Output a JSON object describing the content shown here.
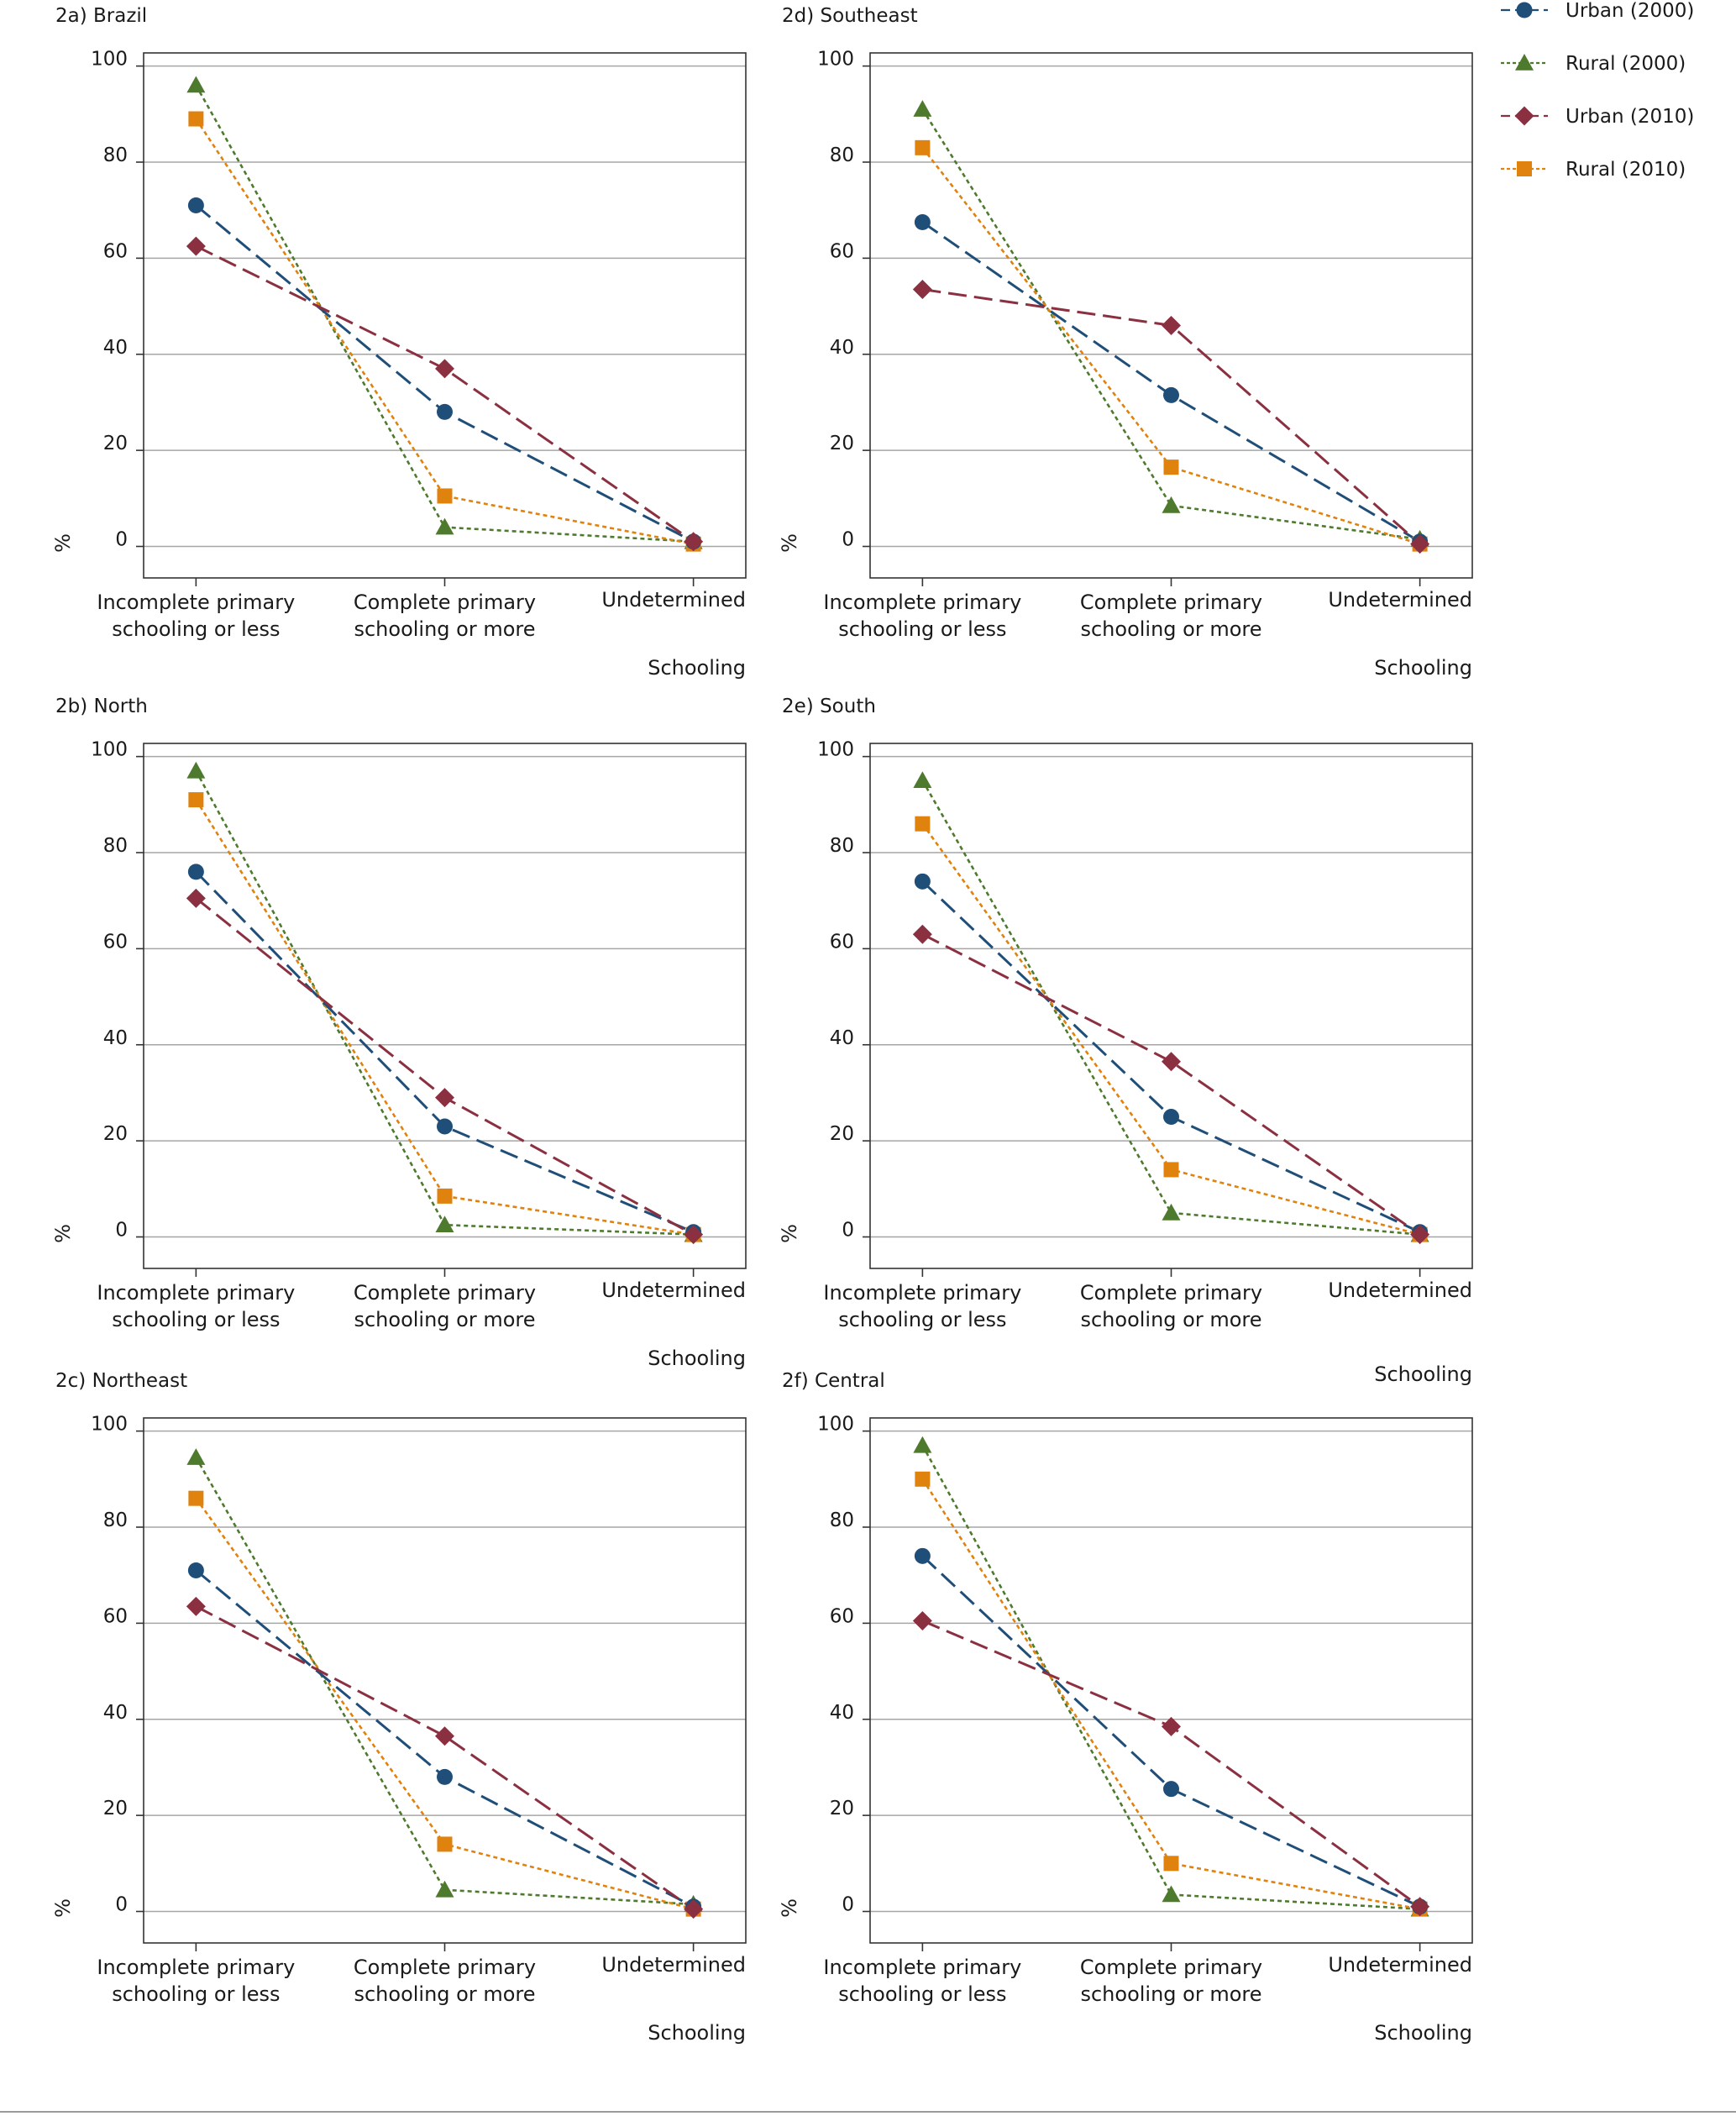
{
  "colors": {
    "urban_2000": "#1f4e79",
    "rural_2000": "#4e7a2e",
    "urban_2010": "#8b3040",
    "rural_2010": "#e0820e",
    "grid": "#a6a6a6",
    "frame": "#333333"
  },
  "legend": {
    "placement": "top-right",
    "items": [
      {
        "key": "urban_2000",
        "label": "Urban (2000)",
        "marker": "circle",
        "dash": "long-dash"
      },
      {
        "key": "rural_2000",
        "label": "Rural (2000)",
        "marker": "triangle",
        "dash": "dotted"
      },
      {
        "key": "urban_2010",
        "label": "Urban (2010)",
        "marker": "diamond",
        "dash": "long-dash"
      },
      {
        "key": "rural_2010",
        "label": "Rural (2010)",
        "marker": "square",
        "dash": "dotted"
      }
    ]
  },
  "chart_data": [
    {
      "type": "line",
      "title": "2a) Brazil",
      "ylabel": "%",
      "xlabel": "Schooling",
      "categories": [
        [
          "Incomplete primary",
          "schooling or less"
        ],
        [
          "Complete primary",
          "schooling or more"
        ],
        [
          "Undetermined"
        ]
      ],
      "ylim": [
        0,
        100
      ],
      "yticks": [
        0,
        20,
        40,
        60,
        80,
        100
      ],
      "grid": true,
      "series": [
        {
          "key": "urban_2000",
          "values": [
            71,
            28,
            1
          ]
        },
        {
          "key": "rural_2000",
          "values": [
            96,
            4,
            1
          ]
        },
        {
          "key": "urban_2010",
          "values": [
            62.5,
            37,
            1
          ]
        },
        {
          "key": "rural_2010",
          "values": [
            89,
            10.5,
            0.5
          ]
        }
      ]
    },
    {
      "type": "line",
      "title": "2b) North",
      "ylabel": "%",
      "xlabel": "Schooling",
      "categories": [
        [
          "Incomplete primary",
          "schooling or less"
        ],
        [
          "Complete primary",
          "schooling or more"
        ],
        [
          "Undetermined"
        ]
      ],
      "ylim": [
        0,
        100
      ],
      "yticks": [
        0,
        20,
        40,
        60,
        80,
        100
      ],
      "grid": true,
      "series": [
        {
          "key": "urban_2000",
          "values": [
            76,
            23,
            1
          ]
        },
        {
          "key": "rural_2000",
          "values": [
            97,
            2.5,
            0.5
          ]
        },
        {
          "key": "urban_2010",
          "values": [
            70.5,
            29,
            0.5
          ]
        },
        {
          "key": "rural_2010",
          "values": [
            91,
            8.5,
            0.5
          ]
        }
      ]
    },
    {
      "type": "line",
      "title": "2c) Northeast",
      "ylabel": "%",
      "xlabel": "Schooling",
      "categories": [
        [
          "Incomplete primary",
          "schooling or less"
        ],
        [
          "Complete primary",
          "schooling or more"
        ],
        [
          "Undetermined"
        ]
      ],
      "ylim": [
        0,
        100
      ],
      "yticks": [
        0,
        20,
        40,
        60,
        80,
        100
      ],
      "grid": true,
      "series": [
        {
          "key": "urban_2000",
          "values": [
            71,
            28,
            1
          ]
        },
        {
          "key": "rural_2000",
          "values": [
            94.5,
            4.5,
            1.5
          ]
        },
        {
          "key": "urban_2010",
          "values": [
            63.5,
            36.5,
            0.5
          ]
        },
        {
          "key": "rural_2010",
          "values": [
            86,
            14,
            0.5
          ]
        }
      ]
    },
    {
      "type": "line",
      "title": "2d) Southeast",
      "ylabel": "%",
      "xlabel": "Schooling",
      "categories": [
        [
          "Incomplete primary",
          "schooling or less"
        ],
        [
          "Complete primary",
          "schooling or more"
        ],
        [
          "Undetermined"
        ]
      ],
      "ylim": [
        0,
        100
      ],
      "yticks": [
        0,
        20,
        40,
        60,
        80,
        100
      ],
      "grid": true,
      "series": [
        {
          "key": "urban_2000",
          "values": [
            67.5,
            31.5,
            1
          ]
        },
        {
          "key": "rural_2000",
          "values": [
            91,
            8.5,
            1.5
          ]
        },
        {
          "key": "urban_2010",
          "values": [
            53.5,
            46,
            0.5
          ]
        },
        {
          "key": "rural_2010",
          "values": [
            83,
            16.5,
            0.5
          ]
        }
      ]
    },
    {
      "type": "line",
      "title": "2e) South",
      "ylabel": "%",
      "xlabel": "Schooling",
      "categories": [
        [
          "Incomplete primary",
          "schooling or less"
        ],
        [
          "Complete primary",
          "schooling or more"
        ],
        [
          "Undetermined"
        ]
      ],
      "ylim": [
        0,
        100
      ],
      "yticks": [
        0,
        20,
        40,
        60,
        80,
        100
      ],
      "grid": true,
      "series": [
        {
          "key": "urban_2000",
          "values": [
            74,
            25,
            1
          ]
        },
        {
          "key": "rural_2000",
          "values": [
            95,
            5,
            0.5
          ]
        },
        {
          "key": "urban_2010",
          "values": [
            63,
            36.5,
            0.5
          ]
        },
        {
          "key": "rural_2010",
          "values": [
            86,
            14,
            0.5
          ]
        }
      ]
    },
    {
      "type": "line",
      "title": "2f) Central",
      "ylabel": "%",
      "xlabel": "Schooling",
      "categories": [
        [
          "Incomplete primary",
          "schooling or less"
        ],
        [
          "Complete primary",
          "schooling or more"
        ],
        [
          "Undetermined"
        ]
      ],
      "ylim": [
        0,
        100
      ],
      "yticks": [
        0,
        20,
        40,
        60,
        80,
        100
      ],
      "grid": true,
      "series": [
        {
          "key": "urban_2000",
          "values": [
            74,
            25.5,
            1
          ]
        },
        {
          "key": "rural_2000",
          "values": [
            97,
            3.5,
            0.5
          ]
        },
        {
          "key": "urban_2010",
          "values": [
            60.5,
            38.5,
            1
          ]
        },
        {
          "key": "rural_2010",
          "values": [
            90,
            10,
            0.5
          ]
        }
      ]
    }
  ]
}
